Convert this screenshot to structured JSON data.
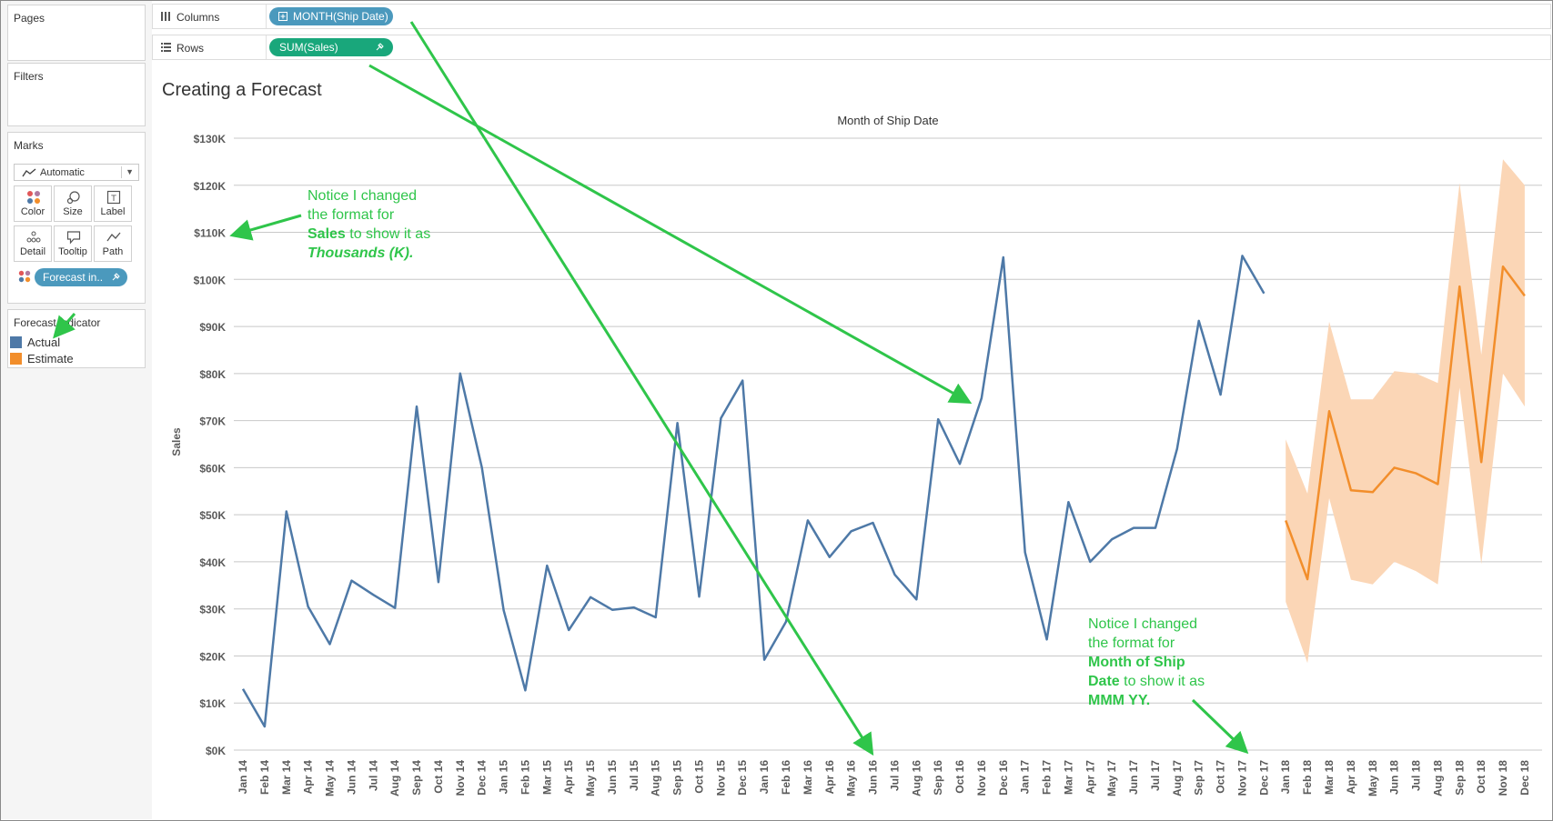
{
  "left_pane": {
    "pages_title": "Pages",
    "filters_title": "Filters",
    "marks_title": "Marks",
    "mark_type": "Automatic",
    "mark_buttons": [
      "Color",
      "Size",
      "Label",
      "Detail",
      "Tooltip",
      "Path"
    ],
    "forecast_pill": "Forecast in..",
    "legend_title": "Forecast indicator",
    "legend_items": [
      {
        "label": "Actual",
        "color": "#4e79a7"
      },
      {
        "label": "Estimate",
        "color": "#f28e2b"
      }
    ]
  },
  "shelves": {
    "columns_label": "Columns",
    "columns_pill": "MONTH(Ship Date)",
    "rows_label": "Rows",
    "rows_pill": "SUM(Sales)"
  },
  "colors": {
    "dimension_pill": "#4b99bd",
    "measure_pill": "#19a77b",
    "actual": "#4e79a7",
    "estimate": "#f28e2b",
    "band": "#fbd6b6",
    "annotation": "#2fc54a"
  },
  "sheet_title": "Creating a Forecast",
  "annotations": {
    "note1": {
      "l1": "Notice I changed",
      "l2": "the format for",
      "b1": "Sales",
      "l3": " to show it as",
      "i1": "Thousands (K)."
    },
    "note2": {
      "l1": "Notice I changed",
      "l2": "the format for",
      "b1": "Month of Ship",
      "b2": "Date",
      "l3": " to show it as",
      "b3": "MMM YY."
    }
  },
  "chart_data": {
    "type": "line",
    "title": "",
    "xlabel": "Month of Ship Date",
    "ylabel": "Sales",
    "ylim": [
      0,
      130000
    ],
    "y_ticks": [
      "$0K",
      "$10K",
      "$20K",
      "$30K",
      "$40K",
      "$50K",
      "$60K",
      "$70K",
      "$80K",
      "$90K",
      "$100K",
      "$110K",
      "$120K",
      "$130K"
    ],
    "grid": true,
    "legend_position": "left pane",
    "categories": [
      "Jan 14",
      "Feb 14",
      "Mar 14",
      "Apr 14",
      "May 14",
      "Jun 14",
      "Jul 14",
      "Aug 14",
      "Sep 14",
      "Oct 14",
      "Nov 14",
      "Dec 14",
      "Jan 15",
      "Feb 15",
      "Mar 15",
      "Apr 15",
      "May 15",
      "Jun 15",
      "Jul 15",
      "Aug 15",
      "Sep 15",
      "Oct 15",
      "Nov 15",
      "Dec 15",
      "Jan 16",
      "Feb 16",
      "Mar 16",
      "Apr 16",
      "May 16",
      "Jun 16",
      "Jul 16",
      "Aug 16",
      "Sep 16",
      "Oct 16",
      "Nov 16",
      "Dec 16",
      "Jan 17",
      "Feb 17",
      "Mar 17",
      "Apr 17",
      "May 17",
      "Jun 17",
      "Jul 17",
      "Aug 17",
      "Sep 17",
      "Oct 17",
      "Nov 17",
      "Dec 17",
      "Jan 18",
      "Feb 18",
      "Mar 18",
      "Apr 18",
      "May 18",
      "Jun 18",
      "Jul 18",
      "Aug 18",
      "Sep 18",
      "Oct 18",
      "Nov 18",
      "Dec 18"
    ],
    "series": [
      {
        "name": "Actual",
        "values": [
          13000,
          5000,
          50700,
          30500,
          22500,
          36000,
          33000,
          30200,
          73000,
          35700,
          80000,
          60000,
          29700,
          12700,
          39200,
          25500,
          32500,
          29800,
          30300,
          28200,
          69500,
          32600,
          70500,
          78500,
          19200,
          27300,
          48800,
          41000,
          46500,
          48300,
          37300,
          32000,
          70300,
          60800,
          74800,
          104700,
          42000,
          23500,
          52700,
          40000,
          44800,
          47200,
          47200,
          64000,
          91200,
          75500,
          105000,
          97000,
          null,
          null,
          null,
          null,
          null,
          null,
          null,
          null,
          null,
          null,
          null,
          null
        ]
      },
      {
        "name": "Estimate",
        "values": [
          null,
          null,
          null,
          null,
          null,
          null,
          null,
          null,
          null,
          null,
          null,
          null,
          null,
          null,
          null,
          null,
          null,
          null,
          null,
          null,
          null,
          null,
          null,
          null,
          null,
          null,
          null,
          null,
          null,
          null,
          null,
          null,
          null,
          null,
          null,
          null,
          null,
          null,
          null,
          null,
          null,
          null,
          null,
          null,
          null,
          null,
          null,
          null,
          48800,
          36300,
          72000,
          55200,
          54800,
          60000,
          58800,
          56500,
          98500,
          61200,
          102700,
          96500
        ],
        "upper": [
          null,
          null,
          null,
          null,
          null,
          null,
          null,
          null,
          null,
          null,
          null,
          null,
          null,
          null,
          null,
          null,
          null,
          null,
          null,
          null,
          null,
          null,
          null,
          null,
          null,
          null,
          null,
          null,
          null,
          null,
          null,
          null,
          null,
          null,
          null,
          null,
          null,
          null,
          null,
          null,
          null,
          null,
          null,
          null,
          null,
          null,
          null,
          null,
          66000,
          54500,
          91000,
          74500,
          74500,
          80500,
          80000,
          78000,
          120500,
          84000,
          125500,
          120000
        ],
        "lower": [
          null,
          null,
          null,
          null,
          null,
          null,
          null,
          null,
          null,
          null,
          null,
          null,
          null,
          null,
          null,
          null,
          null,
          null,
          null,
          null,
          null,
          null,
          null,
          null,
          null,
          null,
          null,
          null,
          null,
          null,
          null,
          null,
          null,
          null,
          null,
          null,
          null,
          null,
          null,
          null,
          null,
          null,
          null,
          null,
          null,
          null,
          null,
          null,
          31500,
          18500,
          53500,
          36200,
          35200,
          40000,
          38000,
          35200,
          77000,
          39500,
          80000,
          73000
        ]
      }
    ]
  }
}
